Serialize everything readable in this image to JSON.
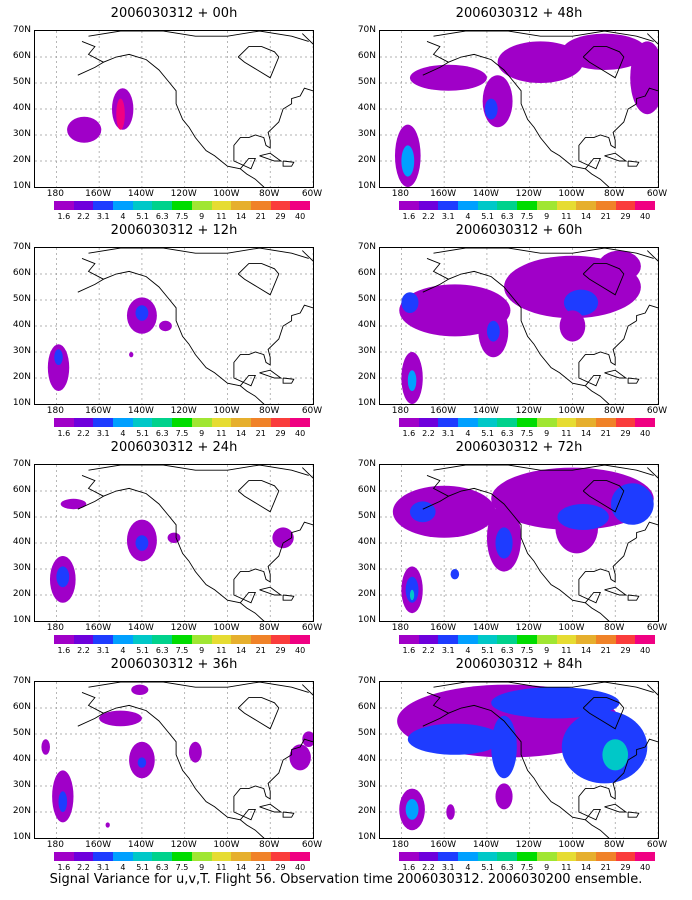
{
  "caption": "Signal Variance for u,v,T. Flight 56. Observation time 2006030312. 2006030200 ensemble.",
  "lat_labels": [
    "70N",
    "60N",
    "50N",
    "40N",
    "30N",
    "20N",
    "10N"
  ],
  "lon_labels": [
    "180",
    "160W",
    "140W",
    "120W",
    "100W",
    "80W",
    "60W"
  ],
  "colorbar": {
    "labels": [
      "1.6",
      "2.2",
      "3.1",
      "4",
      "5.1",
      "6.3",
      "7.5",
      "9",
      "11",
      "14",
      "21",
      "29",
      "40"
    ],
    "colors": [
      "#a000c8",
      "#6e00dc",
      "#1e3cff",
      "#00a0ff",
      "#00c8c8",
      "#00d28c",
      "#00dc00",
      "#a0e632",
      "#e6dc32",
      "#e6af2d",
      "#f08228",
      "#fa3c3c",
      "#f00082"
    ]
  },
  "panels": [
    {
      "title": "2006030312 + 00h",
      "blobs": [
        {
          "lon": -167,
          "lat": 32,
          "rx": 8,
          "ry": 5,
          "level": 0
        },
        {
          "lon": -149,
          "lat": 40,
          "rx": 5,
          "ry": 8,
          "level": 0
        },
        {
          "lon": -150,
          "lat": 38,
          "rx": 2,
          "ry": 6,
          "level": 12
        }
      ]
    },
    {
      "title": "2006030312 + 48h",
      "blobs": [
        {
          "lon": -177,
          "lat": 22,
          "rx": 6,
          "ry": 12,
          "level": 0
        },
        {
          "lon": -177,
          "lat": 20,
          "rx": 3,
          "ry": 6,
          "level": 3
        },
        {
          "lon": -158,
          "lat": 52,
          "rx": 18,
          "ry": 5,
          "level": 0
        },
        {
          "lon": -135,
          "lat": 43,
          "rx": 7,
          "ry": 10,
          "level": 0
        },
        {
          "lon": -138,
          "lat": 40,
          "rx": 3,
          "ry": 4,
          "level": 2
        },
        {
          "lon": -115,
          "lat": 58,
          "rx": 20,
          "ry": 8,
          "level": 0
        },
        {
          "lon": -85,
          "lat": 62,
          "rx": 20,
          "ry": 7,
          "level": 0
        },
        {
          "lon": -65,
          "lat": 52,
          "rx": 8,
          "ry": 14,
          "level": 0
        }
      ]
    },
    {
      "title": "2006030312 + 12h",
      "blobs": [
        {
          "lon": -179,
          "lat": 24,
          "rx": 5,
          "ry": 9,
          "level": 0
        },
        {
          "lon": -179,
          "lat": 28,
          "rx": 2,
          "ry": 3,
          "level": 2
        },
        {
          "lon": -140,
          "lat": 44,
          "rx": 7,
          "ry": 7,
          "level": 0
        },
        {
          "lon": -140,
          "lat": 45,
          "rx": 3,
          "ry": 3,
          "level": 2
        },
        {
          "lon": -129,
          "lat": 40,
          "rx": 3,
          "ry": 2,
          "level": 0
        },
        {
          "lon": -145,
          "lat": 29,
          "rx": 1,
          "ry": 1,
          "level": 0
        }
      ]
    },
    {
      "title": "2006030312 + 60h",
      "blobs": [
        {
          "lon": -175,
          "lat": 20,
          "rx": 5,
          "ry": 10,
          "level": 0
        },
        {
          "lon": -175,
          "lat": 19,
          "rx": 2,
          "ry": 4,
          "level": 3
        },
        {
          "lon": -155,
          "lat": 46,
          "rx": 26,
          "ry": 10,
          "level": 0
        },
        {
          "lon": -176,
          "lat": 49,
          "rx": 4,
          "ry": 4,
          "level": 2
        },
        {
          "lon": -137,
          "lat": 38,
          "rx": 7,
          "ry": 10,
          "level": 0
        },
        {
          "lon": -137,
          "lat": 38,
          "rx": 3,
          "ry": 4,
          "level": 2
        },
        {
          "lon": -100,
          "lat": 55,
          "rx": 32,
          "ry": 12,
          "level": 0
        },
        {
          "lon": -96,
          "lat": 49,
          "rx": 8,
          "ry": 5,
          "level": 2
        },
        {
          "lon": -78,
          "lat": 63,
          "rx": 10,
          "ry": 6,
          "level": 0
        },
        {
          "lon": -100,
          "lat": 40,
          "rx": 6,
          "ry": 6,
          "level": 0
        }
      ]
    },
    {
      "title": "2006030312 + 24h",
      "blobs": [
        {
          "lon": -177,
          "lat": 26,
          "rx": 6,
          "ry": 9,
          "level": 0
        },
        {
          "lon": -177,
          "lat": 27,
          "rx": 3,
          "ry": 4,
          "level": 2
        },
        {
          "lon": -172,
          "lat": 55,
          "rx": 6,
          "ry": 2,
          "level": 0
        },
        {
          "lon": -140,
          "lat": 41,
          "rx": 7,
          "ry": 8,
          "level": 0
        },
        {
          "lon": -140,
          "lat": 40,
          "rx": 3,
          "ry": 3,
          "level": 2
        },
        {
          "lon": -125,
          "lat": 42,
          "rx": 3,
          "ry": 2,
          "level": 0
        },
        {
          "lon": -74,
          "lat": 42,
          "rx": 5,
          "ry": 4,
          "level": 0
        }
      ]
    },
    {
      "title": "2006030312 + 72h",
      "blobs": [
        {
          "lon": -175,
          "lat": 22,
          "rx": 5,
          "ry": 9,
          "level": 0
        },
        {
          "lon": -175,
          "lat": 22,
          "rx": 3,
          "ry": 5,
          "level": 2
        },
        {
          "lon": -175,
          "lat": 20,
          "rx": 1,
          "ry": 2,
          "level": 4
        },
        {
          "lon": -160,
          "lat": 52,
          "rx": 24,
          "ry": 10,
          "level": 0
        },
        {
          "lon": -170,
          "lat": 52,
          "rx": 6,
          "ry": 4,
          "level": 2
        },
        {
          "lon": -132,
          "lat": 42,
          "rx": 8,
          "ry": 13,
          "level": 0
        },
        {
          "lon": -132,
          "lat": 40,
          "rx": 4,
          "ry": 6,
          "level": 2
        },
        {
          "lon": -100,
          "lat": 57,
          "rx": 38,
          "ry": 12,
          "level": 0
        },
        {
          "lon": -98,
          "lat": 46,
          "rx": 10,
          "ry": 10,
          "level": 0
        },
        {
          "lon": -95,
          "lat": 50,
          "rx": 12,
          "ry": 5,
          "level": 2
        },
        {
          "lon": -72,
          "lat": 55,
          "rx": 10,
          "ry": 8,
          "level": 2
        },
        {
          "lon": -155,
          "lat": 28,
          "rx": 2,
          "ry": 2,
          "level": 2
        }
      ]
    },
    {
      "title": "2006030312 + 36h",
      "blobs": [
        {
          "lon": -177,
          "lat": 26,
          "rx": 5,
          "ry": 10,
          "level": 0
        },
        {
          "lon": -177,
          "lat": 24,
          "rx": 2,
          "ry": 4,
          "level": 2
        },
        {
          "lon": -150,
          "lat": 56,
          "rx": 10,
          "ry": 3,
          "level": 0
        },
        {
          "lon": -140,
          "lat": 40,
          "rx": 6,
          "ry": 7,
          "level": 0
        },
        {
          "lon": -140,
          "lat": 39,
          "rx": 2,
          "ry": 2,
          "level": 2
        },
        {
          "lon": -115,
          "lat": 43,
          "rx": 3,
          "ry": 4,
          "level": 0
        },
        {
          "lon": -141,
          "lat": 67,
          "rx": 4,
          "ry": 2,
          "level": 0
        },
        {
          "lon": -66,
          "lat": 41,
          "rx": 5,
          "ry": 5,
          "level": 0
        },
        {
          "lon": -62,
          "lat": 48,
          "rx": 3,
          "ry": 3,
          "level": 0
        },
        {
          "lon": -185,
          "lat": 45,
          "rx": 2,
          "ry": 3,
          "level": 0
        },
        {
          "lon": -156,
          "lat": 15,
          "rx": 1,
          "ry": 1,
          "level": 0
        }
      ]
    },
    {
      "title": "2006030312 + 84h",
      "blobs": [
        {
          "lon": -175,
          "lat": 21,
          "rx": 6,
          "ry": 8,
          "level": 0
        },
        {
          "lon": -175,
          "lat": 21,
          "rx": 3,
          "ry": 4,
          "level": 3
        },
        {
          "lon": -157,
          "lat": 20,
          "rx": 2,
          "ry": 3,
          "level": 0
        },
        {
          "lon": -130,
          "lat": 55,
          "rx": 52,
          "ry": 14,
          "level": 0
        },
        {
          "lon": -155,
          "lat": 48,
          "rx": 22,
          "ry": 6,
          "level": 2
        },
        {
          "lon": -132,
          "lat": 45,
          "rx": 6,
          "ry": 12,
          "level": 2
        },
        {
          "lon": -85,
          "lat": 45,
          "rx": 20,
          "ry": 14,
          "level": 2
        },
        {
          "lon": -80,
          "lat": 42,
          "rx": 6,
          "ry": 6,
          "level": 4
        },
        {
          "lon": -108,
          "lat": 62,
          "rx": 30,
          "ry": 6,
          "level": 2
        },
        {
          "lon": -132,
          "lat": 26,
          "rx": 4,
          "ry": 5,
          "level": 0
        }
      ]
    }
  ],
  "coastlines": {
    "north_america": [
      [
        -168,
        66
      ],
      [
        -162,
        64
      ],
      [
        -165,
        61
      ],
      [
        -158,
        58
      ],
      [
        -152,
        60
      ],
      [
        -146,
        61
      ],
      [
        -138,
        59
      ],
      [
        -132,
        55
      ],
      [
        -128,
        51
      ],
      [
        -124,
        47
      ],
      [
        -124,
        42
      ],
      [
        -121,
        36
      ],
      [
        -118,
        33
      ],
      [
        -115,
        29
      ],
      [
        -110,
        24
      ],
      [
        -106,
        22
      ],
      [
        -100,
        18
      ],
      [
        -94,
        17
      ],
      [
        -91,
        15
      ],
      [
        -87,
        13
      ],
      [
        -83,
        10
      ],
      [
        -80,
        8
      ],
      [
        -78,
        9
      ],
      [
        -76,
        10
      ]
    ],
    "gulf": [
      [
        -94,
        17
      ],
      [
        -92,
        19
      ],
      [
        -90,
        21
      ],
      [
        -87,
        21
      ],
      [
        -89,
        17
      ],
      [
        -97,
        20
      ],
      [
        -97,
        26
      ],
      [
        -94,
        29
      ],
      [
        -90,
        29
      ],
      [
        -87,
        30
      ],
      [
        -83,
        29
      ],
      [
        -82,
        26
      ],
      [
        -80,
        25
      ],
      [
        -80,
        28
      ],
      [
        -81,
        31
      ],
      [
        -76,
        35
      ],
      [
        -74,
        40
      ],
      [
        -70,
        42
      ],
      [
        -70,
        44
      ],
      [
        -66,
        45
      ],
      [
        -64,
        48
      ],
      [
        -60,
        47
      ]
    ],
    "hudson": [
      [
        -95,
        60
      ],
      [
        -92,
        58
      ],
      [
        -86,
        55
      ],
      [
        -80,
        52
      ],
      [
        -78,
        56
      ],
      [
        -76,
        60
      ],
      [
        -78,
        62
      ],
      [
        -84,
        64
      ],
      [
        -90,
        64
      ],
      [
        -95,
        60
      ]
    ],
    "arctic": [
      [
        -165,
        68
      ],
      [
        -150,
        70
      ],
      [
        -130,
        70
      ],
      [
        -115,
        68
      ],
      [
        -100,
        68
      ],
      [
        -85,
        70
      ],
      [
        -70,
        68
      ],
      [
        -62,
        66
      ]
    ],
    "greenland": [
      [
        -65,
        69
      ],
      [
        -60,
        65
      ],
      [
        -54,
        62
      ],
      [
        -50,
        66
      ]
    ],
    "cuba": [
      [
        -85,
        22
      ],
      [
        -80,
        23
      ],
      [
        -75,
        20
      ],
      [
        -78,
        20
      ],
      [
        -85,
        22
      ]
    ],
    "hisp": [
      [
        -74,
        20
      ],
      [
        -69,
        19.5
      ],
      [
        -70,
        18
      ],
      [
        -74,
        18
      ],
      [
        -74,
        20
      ]
    ],
    "alaska_pen": [
      [
        -158,
        58
      ],
      [
        -162,
        56
      ],
      [
        -170,
        53
      ]
    ]
  }
}
